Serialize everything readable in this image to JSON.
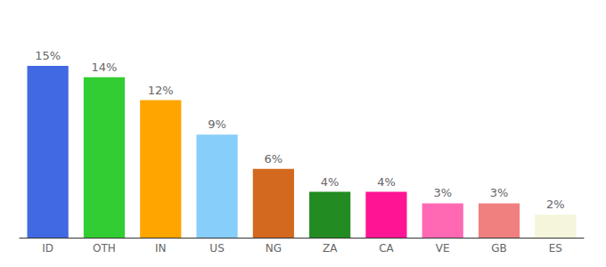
{
  "chart_data": {
    "type": "bar",
    "categories": [
      "ID",
      "OTH",
      "IN",
      "US",
      "NG",
      "ZA",
      "CA",
      "VE",
      "GB",
      "ES"
    ],
    "values": [
      15,
      14,
      12,
      9,
      6,
      4,
      4,
      3,
      3,
      2
    ],
    "value_labels": [
      "15%",
      "14%",
      "12%",
      "9%",
      "6%",
      "4%",
      "4%",
      "3%",
      "3%",
      "2%"
    ],
    "colors": [
      "#4169e1",
      "#32cd32",
      "#ffa500",
      "#87cefa",
      "#d2691e",
      "#228b22",
      "#ff1493",
      "#ff69b4",
      "#f08080",
      "#f5f5dc"
    ],
    "ylim": [
      0,
      15
    ],
    "grid": false,
    "data_labels": true,
    "tick_labels": "x"
  }
}
